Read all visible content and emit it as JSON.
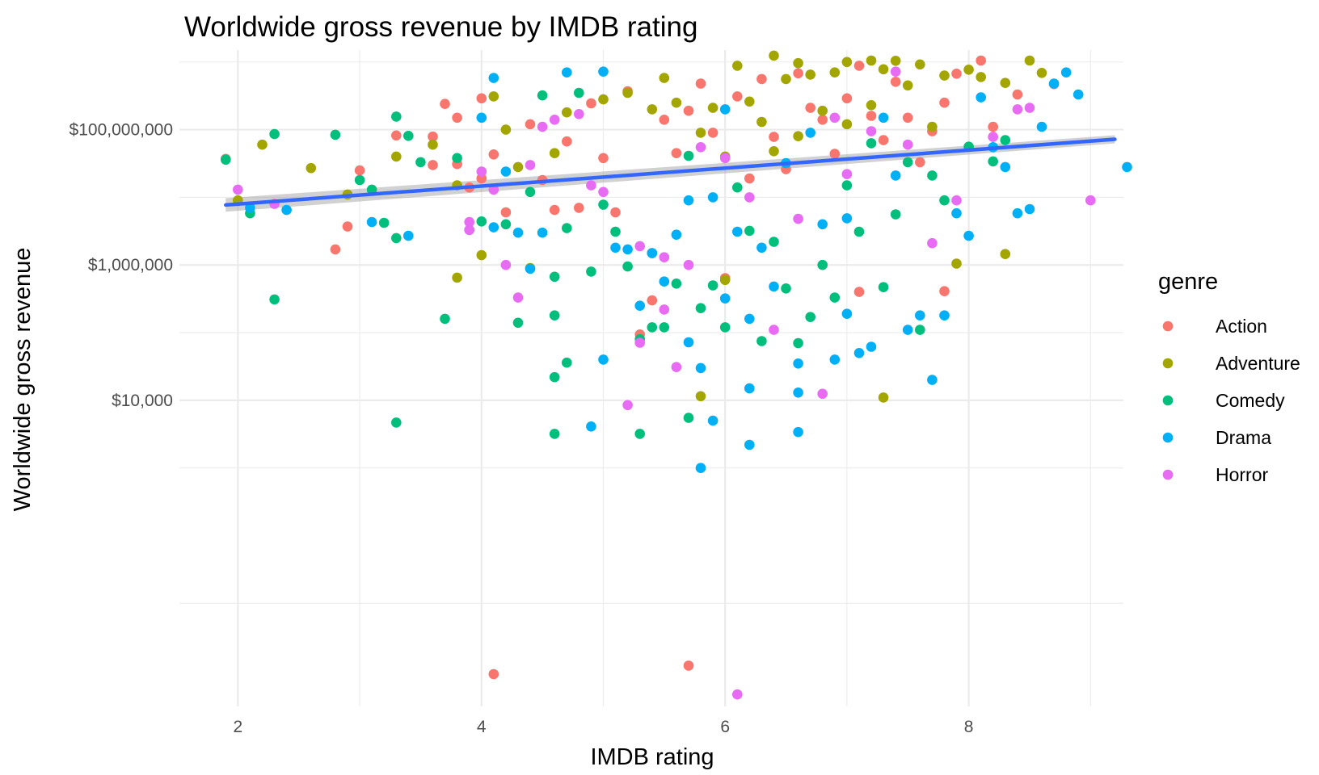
{
  "chart_data": {
    "type": "scatter",
    "title": "Worldwide gross revenue by IMDB rating",
    "xlabel": "IMDB rating",
    "ylabel": "Worldwide gross revenue",
    "x_ticks": [
      2,
      4,
      6,
      8
    ],
    "x_tick_labels": [
      "2",
      "4",
      "6",
      "8"
    ],
    "xlim": [
      1.52,
      9.27
    ],
    "y_scale": "log10",
    "y_ticks": [
      10000,
      1000000,
      100000000
    ],
    "y_tick_labels": [
      "$10,000",
      "$1,000,000",
      "$100,000,000"
    ],
    "ylim": [
      0.3,
      1500000000
    ],
    "grid": true,
    "legend_title": "genre",
    "legend_position": "right",
    "colors": {
      "Action": "#F8766D",
      "Adventure": "#A3A500",
      "Comedy": "#00BF7D",
      "Drama": "#00B0F6",
      "Horror": "#E76BF3",
      "trend": "#3366FF",
      "band": "#999999"
    },
    "trend_line": {
      "x": [
        1.9,
        9.2
      ],
      "y": [
        7700000,
        72000000
      ],
      "band_halfwidth_log10": [
        0.1,
        0.06
      ]
    },
    "series": [
      {
        "name": "Action",
        "points": [
          [
            1.9,
            37000000
          ],
          [
            2.8,
            1700000
          ],
          [
            2.9,
            3700000
          ],
          [
            3.0,
            25000000
          ],
          [
            3.3,
            82000000
          ],
          [
            3.6,
            79000000
          ],
          [
            3.6,
            30000000
          ],
          [
            3.7,
            240000000
          ],
          [
            3.8,
            150000000
          ],
          [
            3.8,
            31000000
          ],
          [
            3.9,
            14000000
          ],
          [
            4.0,
            290000000
          ],
          [
            4.0,
            19000000
          ],
          [
            4.1,
            0.9
          ],
          [
            4.1,
            43000000
          ],
          [
            4.2,
            6000000
          ],
          [
            4.4,
            120000000
          ],
          [
            4.5,
            18000000
          ],
          [
            4.6,
            6500000
          ],
          [
            4.7,
            67000000
          ],
          [
            4.8,
            7000000
          ],
          [
            4.9,
            245000000
          ],
          [
            5.0,
            38000000
          ],
          [
            5.1,
            6000000
          ],
          [
            5.2,
            370000000
          ],
          [
            5.3,
            94000
          ],
          [
            5.4,
            300000
          ],
          [
            5.5,
            140000000
          ],
          [
            5.6,
            45000000
          ],
          [
            5.7,
            1.2
          ],
          [
            5.7,
            190000000
          ],
          [
            5.8,
            480000000
          ],
          [
            5.9,
            90000000
          ],
          [
            6.0,
            640000
          ],
          [
            6.1,
            310000000
          ],
          [
            6.2,
            19000000
          ],
          [
            6.3,
            560000000
          ],
          [
            6.4,
            78000000
          ],
          [
            6.5,
            26000000
          ],
          [
            6.6,
            680000000
          ],
          [
            6.7,
            210000000
          ],
          [
            6.8,
            140000000
          ],
          [
            6.9,
            44000000
          ],
          [
            7.0,
            290000000
          ],
          [
            7.1,
            400000
          ],
          [
            7.1,
            880000000
          ],
          [
            7.2,
            160000000
          ],
          [
            7.3,
            70000000
          ],
          [
            7.4,
            510000000
          ],
          [
            7.5,
            150000000
          ],
          [
            7.6,
            33000000
          ],
          [
            7.7,
            95000000
          ],
          [
            7.8,
            410000
          ],
          [
            7.8,
            250000000
          ],
          [
            7.9,
            670000000
          ],
          [
            8.1,
            1050000000
          ],
          [
            8.2,
            110000000
          ],
          [
            8.4,
            330000000
          ],
          [
            8.7,
            470000000
          ]
        ]
      },
      {
        "name": "Adventure",
        "points": [
          [
            2.0,
            9000000
          ],
          [
            2.2,
            60000000
          ],
          [
            2.6,
            27000000
          ],
          [
            2.9,
            11000000
          ],
          [
            3.3,
            40000000
          ],
          [
            3.6,
            60000000
          ],
          [
            3.8,
            650000
          ],
          [
            3.8,
            15000000
          ],
          [
            4.0,
            1400000
          ],
          [
            4.1,
            310000000
          ],
          [
            4.2,
            100000000
          ],
          [
            4.3,
            28000000
          ],
          [
            4.4,
            900000
          ],
          [
            4.6,
            45000000
          ],
          [
            4.7,
            180000000
          ],
          [
            5.0,
            280000000
          ],
          [
            5.2,
            350000000
          ],
          [
            5.4,
            200000000
          ],
          [
            5.5,
            580000000
          ],
          [
            5.6,
            250000000
          ],
          [
            5.8,
            11500
          ],
          [
            5.8,
            90000000
          ],
          [
            5.9,
            210000000
          ],
          [
            6.0,
            600000
          ],
          [
            6.0,
            40000000
          ],
          [
            6.1,
            880000000
          ],
          [
            6.2,
            260000000
          ],
          [
            6.3,
            130000000
          ],
          [
            6.4,
            1240000000
          ],
          [
            6.4,
            48000000
          ],
          [
            6.5,
            560000000
          ],
          [
            6.6,
            960000000
          ],
          [
            6.6,
            80000000
          ],
          [
            6.7,
            650000000
          ],
          [
            6.8,
            190000000
          ],
          [
            6.9,
            700000000
          ],
          [
            7.0,
            1000000000
          ],
          [
            7.0,
            120000000
          ],
          [
            7.2,
            1050000000
          ],
          [
            7.2,
            230000000
          ],
          [
            7.3,
            11000
          ],
          [
            7.3,
            780000000
          ],
          [
            7.4,
            1040000000
          ],
          [
            7.5,
            450000000
          ],
          [
            7.6,
            920000000
          ],
          [
            7.7,
            110000000
          ],
          [
            7.8,
            630000000
          ],
          [
            7.9,
            1050000
          ],
          [
            8.0,
            770000000
          ],
          [
            8.1,
            600000000
          ],
          [
            8.3,
            1450000
          ],
          [
            8.3,
            490000000
          ],
          [
            8.5,
            1050000000
          ],
          [
            8.6,
            690000000
          ]
        ]
      },
      {
        "name": "Comedy",
        "points": [
          [
            1.9,
            36000000
          ],
          [
            2.1,
            5800000
          ],
          [
            2.3,
            86000000
          ],
          [
            2.3,
            310000
          ],
          [
            2.8,
            84000000
          ],
          [
            3.0,
            18000000
          ],
          [
            3.1,
            13000000
          ],
          [
            3.2,
            4200000
          ],
          [
            3.3,
            156000000
          ],
          [
            3.3,
            2500000
          ],
          [
            3.3,
            4700
          ],
          [
            3.4,
            81000000
          ],
          [
            3.5,
            33000000
          ],
          [
            3.7,
            160000
          ],
          [
            3.8,
            38000000
          ],
          [
            3.9,
            3300000
          ],
          [
            4.0,
            4400000
          ],
          [
            4.2,
            4000000
          ],
          [
            4.3,
            140000
          ],
          [
            4.4,
            12000000
          ],
          [
            4.5,
            320000000
          ],
          [
            4.6,
            670000
          ],
          [
            4.6,
            180000
          ],
          [
            4.6,
            22000
          ],
          [
            4.6,
            3200
          ],
          [
            4.7,
            3500000
          ],
          [
            4.7,
            36000
          ],
          [
            4.8,
            350000000
          ],
          [
            4.9,
            800000
          ],
          [
            5.0,
            7800000
          ],
          [
            5.1,
            3100000
          ],
          [
            5.2,
            950000
          ],
          [
            5.3,
            80000
          ],
          [
            5.3,
            3200
          ],
          [
            5.4,
            1500000
          ],
          [
            5.4,
            120000
          ],
          [
            5.5,
            120000
          ],
          [
            5.6,
            530000
          ],
          [
            5.7,
            5500
          ],
          [
            5.7,
            41000000
          ],
          [
            5.8,
            230000
          ],
          [
            5.9,
            500000
          ],
          [
            6.0,
            120000
          ],
          [
            6.1,
            14000000
          ],
          [
            6.2,
            3200000
          ],
          [
            6.3,
            75000
          ],
          [
            6.4,
            2200000
          ],
          [
            6.5,
            450000
          ],
          [
            6.6,
            70000
          ],
          [
            6.7,
            170000
          ],
          [
            6.8,
            1000000
          ],
          [
            6.9,
            330000
          ],
          [
            7.0,
            15000000
          ],
          [
            7.1,
            3100000
          ],
          [
            7.2,
            63000000
          ],
          [
            7.3,
            470000
          ],
          [
            7.4,
            5600000
          ],
          [
            7.5,
            33000000
          ],
          [
            7.6,
            110000
          ],
          [
            7.7,
            21000000
          ],
          [
            7.8,
            9000000
          ],
          [
            8.0,
            56000000
          ],
          [
            8.2,
            34000000
          ],
          [
            8.3,
            70000000
          ]
        ]
      },
      {
        "name": "Drama",
        "points": [
          [
            2.1,
            7000000
          ],
          [
            2.4,
            6500000
          ],
          [
            3.1,
            4300000
          ],
          [
            3.4,
            2700000
          ],
          [
            4.0,
            150000000
          ],
          [
            4.1,
            580000000
          ],
          [
            4.1,
            3600000
          ],
          [
            4.2,
            24000000
          ],
          [
            4.3,
            3000000
          ],
          [
            4.4,
            880000
          ],
          [
            4.5,
            3000000
          ],
          [
            4.7,
            700000000
          ],
          [
            4.9,
            4100
          ],
          [
            5.0,
            40000
          ],
          [
            5.0,
            720000000
          ],
          [
            5.1,
            1800000
          ],
          [
            5.2,
            1700000
          ],
          [
            5.3,
            250000
          ],
          [
            5.4,
            1500000
          ],
          [
            5.5,
            570000
          ],
          [
            5.6,
            2800000
          ],
          [
            5.7,
            72000
          ],
          [
            5.7,
            9000000
          ],
          [
            5.8,
            1000
          ],
          [
            5.8,
            30000
          ],
          [
            5.9,
            5000
          ],
          [
            5.9,
            10000000
          ],
          [
            6.0,
            320000
          ],
          [
            6.0,
            200000000
          ],
          [
            6.1,
            3100000
          ],
          [
            6.2,
            2200
          ],
          [
            6.2,
            15000
          ],
          [
            6.2,
            160000
          ],
          [
            6.3,
            1800000
          ],
          [
            6.4,
            480000
          ],
          [
            6.5,
            32000000
          ],
          [
            6.6,
            3400
          ],
          [
            6.6,
            13000
          ],
          [
            6.6,
            35000
          ],
          [
            6.7,
            90000000
          ],
          [
            6.8,
            4000000
          ],
          [
            6.9,
            40000
          ],
          [
            7.0,
            190000
          ],
          [
            7.0,
            4900000
          ],
          [
            7.1,
            50000
          ],
          [
            7.2,
            62000
          ],
          [
            7.3,
            150000000
          ],
          [
            7.4,
            21000000
          ],
          [
            7.5,
            110000
          ],
          [
            7.6,
            180000
          ],
          [
            7.7,
            20000
          ],
          [
            7.8,
            180000
          ],
          [
            7.9,
            5800000
          ],
          [
            8.0,
            2700000
          ],
          [
            8.1,
            300000000
          ],
          [
            8.2,
            55000000
          ],
          [
            8.3,
            28000000
          ],
          [
            8.4,
            5800000
          ],
          [
            8.5,
            6700000
          ],
          [
            8.6,
            110000000
          ],
          [
            8.7,
            480000000
          ],
          [
            8.8,
            700000000
          ],
          [
            8.9,
            330000000
          ],
          [
            9.3,
            28000000
          ]
        ]
      },
      {
        "name": "Horror",
        "points": [
          [
            2.0,
            13000000
          ],
          [
            2.3,
            8000000
          ],
          [
            3.9,
            3300000
          ],
          [
            3.9,
            4300000
          ],
          [
            4.0,
            24000000
          ],
          [
            4.1,
            13000000
          ],
          [
            4.2,
            1000000
          ],
          [
            4.3,
            330000
          ],
          [
            4.4,
            30000000
          ],
          [
            4.5,
            110000000
          ],
          [
            4.6,
            140000000
          ],
          [
            4.8,
            170000000
          ],
          [
            4.9,
            15000000
          ],
          [
            5.0,
            12000000
          ],
          [
            5.2,
            8500
          ],
          [
            5.3,
            71000
          ],
          [
            5.3,
            1900000
          ],
          [
            5.5,
            220000
          ],
          [
            5.5,
            1300000
          ],
          [
            5.6,
            31000
          ],
          [
            5.7,
            1000000
          ],
          [
            5.8,
            55000000
          ],
          [
            6.0,
            38000000
          ],
          [
            6.1,
            0.45
          ],
          [
            6.2,
            10000000
          ],
          [
            6.4,
            110000
          ],
          [
            6.6,
            4800000
          ],
          [
            6.8,
            12500
          ],
          [
            6.9,
            150000000
          ],
          [
            7.0,
            22000000
          ],
          [
            7.2,
            95000000
          ],
          [
            7.4,
            720000000
          ],
          [
            7.5,
            60000000
          ],
          [
            7.7,
            2100000
          ],
          [
            7.9,
            9000000
          ],
          [
            8.2,
            78000000
          ],
          [
            8.4,
            200000000
          ],
          [
            8.5,
            210000000
          ],
          [
            9.0,
            9000000
          ]
        ]
      }
    ]
  }
}
